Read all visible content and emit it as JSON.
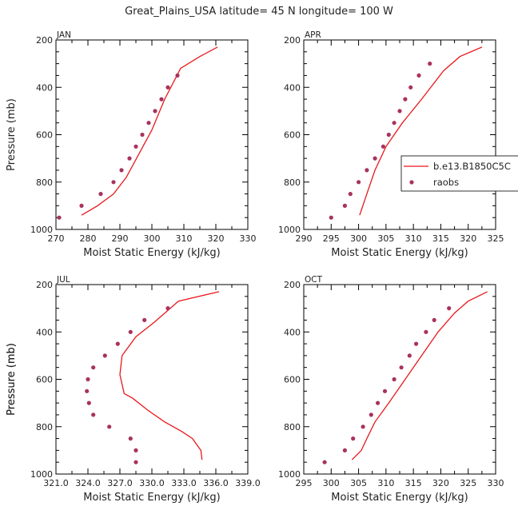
{
  "page_title": "Great_Plains_USA  latitude= 45 N longitude= 100 W",
  "colors": {
    "model": "#e8181c",
    "raobs": "#a8325e",
    "frame": "#000000"
  },
  "legend": {
    "model_label": "b.e13.B1850C5C",
    "obs_label": "raobs",
    "placement": "right-of-APR-panel"
  },
  "chart_data": [
    {
      "type": "line",
      "panel": "JAN",
      "xlabel": "Moist Static Energy (kJ/kg)",
      "ylabel": "Pressure (mb)",
      "xlim": [
        270,
        330
      ],
      "ylim": [
        1000,
        200
      ],
      "xticks": [
        "270",
        "280",
        "290",
        "300",
        "310",
        "320",
        "330"
      ],
      "yticks": [
        "200",
        "400",
        "600",
        "800",
        "1000"
      ],
      "series": [
        {
          "name": "b.e13.B1850C5C",
          "style": "line",
          "x": [
            278,
            283,
            288,
            292,
            296,
            300,
            304,
            309,
            315,
            320.5
          ],
          "y": [
            940,
            900,
            850,
            780,
            680,
            580,
            450,
            320,
            270,
            230
          ]
        },
        {
          "name": "raobs",
          "style": "markers",
          "x": [
            271,
            278,
            284,
            288,
            290.5,
            293,
            295,
            297,
            299,
            301,
            303,
            305,
            308
          ],
          "y": [
            950,
            900,
            850,
            800,
            750,
            700,
            650,
            600,
            550,
            500,
            450,
            400,
            350
          ]
        }
      ]
    },
    {
      "type": "line",
      "panel": "APR",
      "xlabel": "Moist Static Energy (kJ/kg)",
      "ylabel": "",
      "xlim": [
        290,
        325
      ],
      "ylim": [
        1000,
        200
      ],
      "xticks": [
        "290",
        "295",
        "300",
        "305",
        "310",
        "315",
        "320",
        "325"
      ],
      "yticks": [
        "200",
        "400",
        "600",
        "800",
        "1000"
      ],
      "series": [
        {
          "name": "b.e13.B1850C5C",
          "style": "line",
          "x": [
            300.2,
            301.5,
            303,
            305,
            308,
            311.5,
            315.5,
            318.5,
            322.5
          ],
          "y": [
            940,
            850,
            750,
            650,
            550,
            450,
            330,
            270,
            230
          ]
        },
        {
          "name": "raobs",
          "style": "markers",
          "x": [
            295,
            297.5,
            298.5,
            300,
            301.5,
            303,
            304.5,
            305.5,
            306.5,
            307.5,
            308.5,
            309.5,
            311,
            313
          ],
          "y": [
            950,
            900,
            850,
            800,
            750,
            700,
            650,
            600,
            550,
            500,
            450,
            400,
            350,
            300
          ]
        }
      ]
    },
    {
      "type": "line",
      "panel": "JUL",
      "xlabel": "Moist Static Energy (kJ/kg)",
      "ylabel": "Pressure (mb)",
      "xlim": [
        321,
        339
      ],
      "ylim": [
        1000,
        200
      ],
      "xticks": [
        "321.0",
        "324.0",
        "327.0",
        "330.0",
        "333.0",
        "336.0",
        "339.0"
      ],
      "yticks": [
        "200",
        "400",
        "600",
        "800",
        "1000"
      ],
      "series": [
        {
          "name": "b.e13.B1850C5C",
          "style": "line",
          "x": [
            334.7,
            334.6,
            333.8,
            332.8,
            331.2,
            329.6,
            328.2,
            327.4,
            327.0,
            327.2,
            328.5,
            330.2,
            332.5,
            336.3
          ],
          "y": [
            940,
            900,
            850,
            820,
            780,
            730,
            680,
            660,
            580,
            500,
            420,
            360,
            270,
            230
          ]
        },
        {
          "name": "raobs",
          "style": "markers",
          "x": [
            328.5,
            328.5,
            328.0,
            326.0,
            324.5,
            324.1,
            323.9,
            324.0,
            324.5,
            325.6,
            326.8,
            328.0,
            329.3,
            331.5
          ],
          "y": [
            950,
            900,
            850,
            800,
            750,
            700,
            650,
            600,
            550,
            500,
            450,
            400,
            350,
            300
          ]
        }
      ]
    },
    {
      "type": "line",
      "panel": "OCT",
      "xlabel": "Moist Static Energy (kJ/kg)",
      "ylabel": "Pressure (mb)",
      "xlim": [
        295,
        330
      ],
      "ylim": [
        1000,
        200
      ],
      "xticks": [
        "295",
        "300",
        "305",
        "310",
        "315",
        "320",
        "325",
        "330"
      ],
      "yticks": [
        "200",
        "400",
        "600",
        "800",
        "1000"
      ],
      "series": [
        {
          "name": "b.e13.B1850C5C",
          "style": "line",
          "x": [
            303.8,
            305.5,
            306.5,
            308,
            310.5,
            313.5,
            316.5,
            319.5,
            322.5,
            325,
            328.5
          ],
          "y": [
            940,
            900,
            850,
            780,
            700,
            600,
            500,
            400,
            320,
            270,
            230
          ]
        },
        {
          "name": "raobs",
          "style": "markers",
          "x": [
            298.8,
            302.5,
            304,
            305.8,
            307.3,
            308.5,
            309.8,
            311.5,
            312.8,
            314.3,
            315.5,
            317.3,
            318.8,
            321.5
          ],
          "y": [
            950,
            900,
            850,
            800,
            750,
            700,
            650,
            600,
            550,
            500,
            450,
            400,
            350,
            300
          ]
        }
      ]
    }
  ]
}
